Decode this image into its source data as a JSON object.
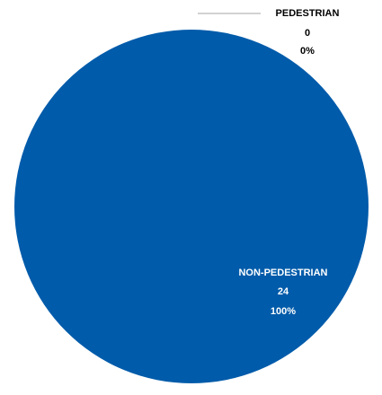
{
  "chart_data": {
    "type": "pie",
    "slices": [
      {
        "label": "PEDESTRIAN",
        "value": 0,
        "percent": "0%",
        "color": "#a6a6a6"
      },
      {
        "label": "NON-PEDESTRIAN",
        "value": 24,
        "percent": "100%",
        "color": "#005baa"
      }
    ],
    "label_colors": {
      "outside": "#000000",
      "inside": "#ffffff"
    },
    "leader_line_color": "#a6a6a6"
  }
}
